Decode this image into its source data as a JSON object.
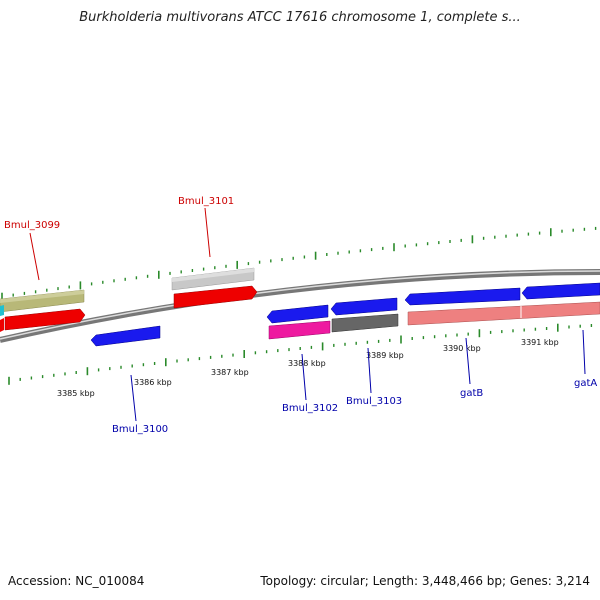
{
  "title": "Burkholderia multivorans ATCC 17616 chromosome 1, complete s...",
  "footer": {
    "accession": "Accession: NC_010084",
    "summary": "Topology: circular; Length: 3,448,466 bp; Genes: 3,214"
  },
  "colors": {
    "backbone": "#888888",
    "tick": "#2a8a2a",
    "forward_label": "#cc0000",
    "reverse_label": "#0000aa"
  },
  "tick_labels": [
    "3385 kbp",
    "3386 kbp",
    "3387 kbp",
    "3388 kbp",
    "3389 kbp",
    "3390 kbp",
    "3391 kbp"
  ],
  "genes": [
    {
      "label": "Bmul_3099",
      "strand": "forward",
      "color": "#b8b878"
    },
    {
      "label": "Bmul_3100",
      "strand": "reverse",
      "color": "#1a1aee"
    },
    {
      "label": "Bmul_3101",
      "strand": "forward",
      "color": "#c8c8c8"
    },
    {
      "label": "Bmul_3102",
      "strand": "reverse",
      "color": "#ee1aa0"
    },
    {
      "label": "Bmul_3103",
      "strand": "reverse",
      "color": "#666666"
    },
    {
      "label": "gatB",
      "strand": "reverse",
      "color": "#ee8080"
    },
    {
      "label": "gatA",
      "strand": "reverse",
      "color": "#1a1aee"
    }
  ]
}
